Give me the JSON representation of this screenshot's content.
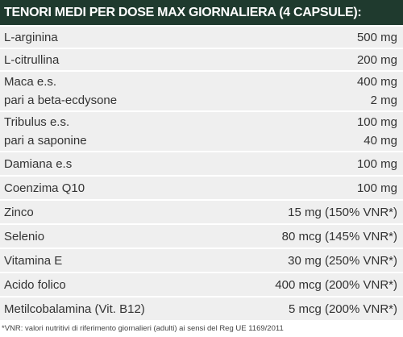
{
  "header": {
    "title": "TENORI MEDI PER DOSE MAX GIORNALIERA (4 CAPSULE):"
  },
  "table": {
    "rows": [
      [
        {
          "name": "L-arginina",
          "value": "500 mg"
        }
      ],
      [
        {
          "name": "L-citrullina",
          "value": "200 mg"
        }
      ],
      [
        {
          "name": "Maca e.s.",
          "value": "400 mg"
        },
        {
          "name": "pari a beta-ecdysone",
          "value": "2 mg"
        }
      ],
      [
        {
          "name": "Tribulus e.s.",
          "value": "100 mg"
        },
        {
          "name": "pari a saponine",
          "value": "40 mg"
        }
      ],
      [
        {
          "name": "Damiana e.s",
          "value": "100 mg"
        }
      ],
      [
        {
          "name": "Coenzima Q10",
          "value": "100 mg"
        }
      ],
      [
        {
          "name": "Zinco",
          "value": "15 mg (150% VNR*)"
        }
      ],
      [
        {
          "name": "Selenio",
          "value": "80 mcg (145% VNR*)"
        }
      ],
      [
        {
          "name": "Vitamina E",
          "value": "30 mg (250% VNR*)"
        }
      ],
      [
        {
          "name": "Acido folico",
          "value": "400 mcg (200% VNR*)"
        }
      ],
      [
        {
          "name": "Metilcobalamina (Vit. B12)",
          "value": "5 mcg (200% VNR*)"
        }
      ]
    ]
  },
  "footnote": "*VNR: valori nutritivi di riferimento giornalieri (adulti) ai sensi del Reg UE 1169/2011"
}
